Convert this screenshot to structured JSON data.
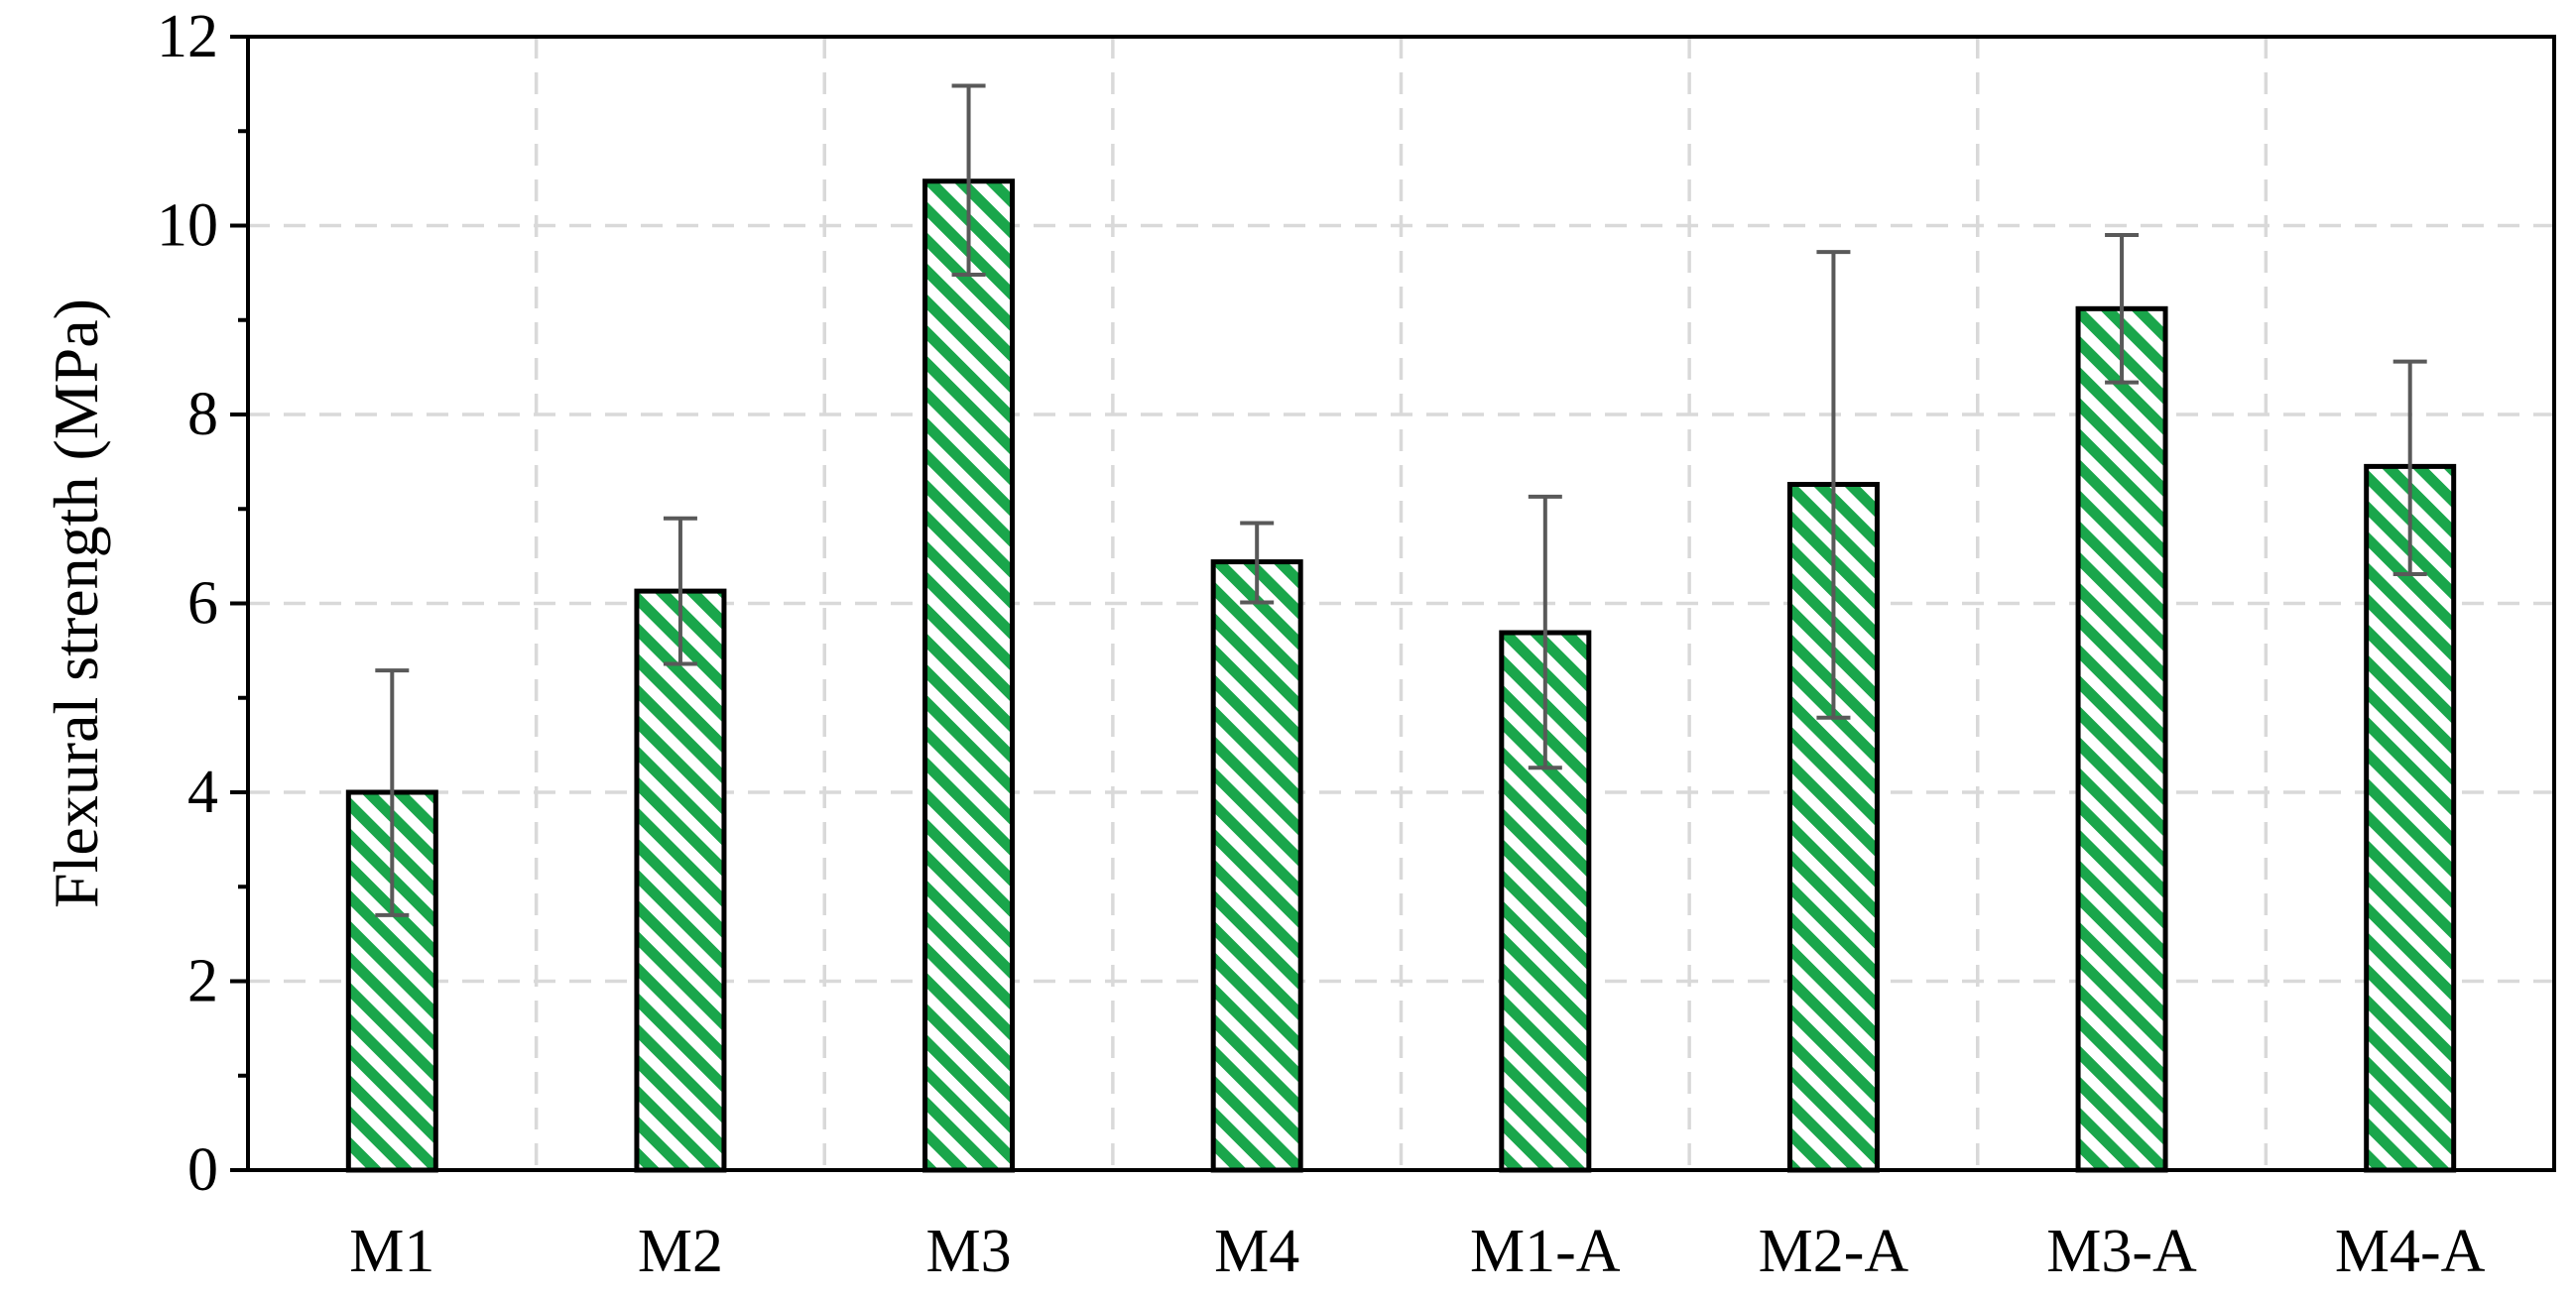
{
  "chart_data": {
    "type": "bar",
    "title": "",
    "xlabel": "",
    "ylabel": "Flexural strength (MPa)",
    "categories": [
      "M1",
      "M2",
      "M3",
      "M4",
      "M1-A",
      "M2-A",
      "M3-A",
      "M4-A"
    ],
    "values": [
      4.0,
      6.13,
      10.47,
      6.44,
      5.69,
      7.26,
      9.12,
      7.45
    ],
    "error_upper": [
      5.29,
      6.9,
      11.48,
      6.85,
      7.13,
      9.72,
      9.9,
      8.56
    ],
    "error_lower": [
      2.7,
      5.36,
      9.48,
      6.01,
      4.26,
      4.79,
      8.34,
      6.31
    ],
    "ylim": [
      0,
      12
    ],
    "yticks": [
      0,
      2,
      4,
      6,
      8,
      10,
      12
    ],
    "ytick_labels": [
      "0",
      "2",
      "4",
      "6",
      "8",
      "10",
      "12"
    ],
    "grid": true,
    "legend": "none",
    "colors": {
      "bar_fill_hatch": "#1aa64b",
      "bar_fill_base": "#ffffff",
      "bar_edge": "#000000",
      "error_bar": "#595959",
      "grid": "#d9d9d9"
    }
  }
}
